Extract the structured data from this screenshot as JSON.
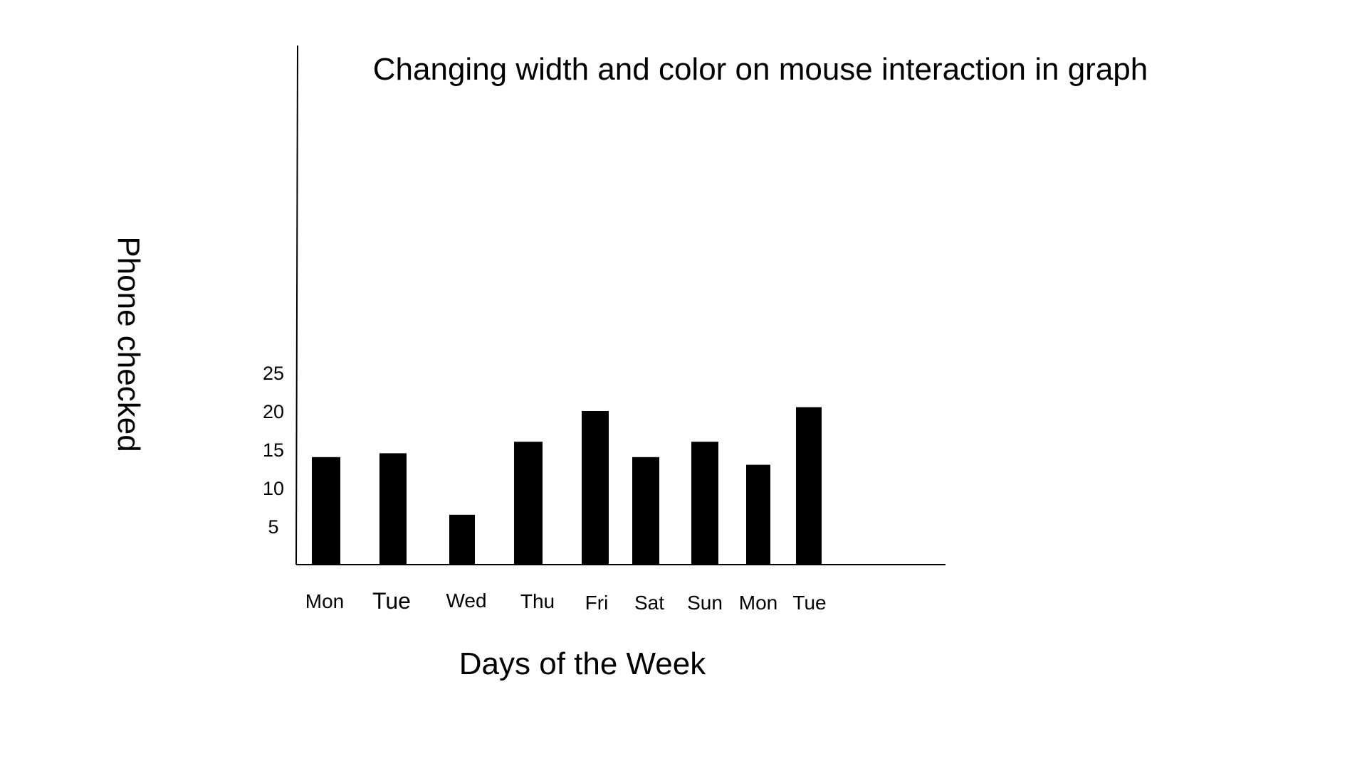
{
  "chart_data": {
    "type": "bar",
    "title": "Changing width and color on mouse interaction in graph",
    "xlabel": "Days of the Week",
    "ylabel": "Phone checked",
    "categories": [
      "Mon",
      "Tue",
      "Wed",
      "Thu",
      "Fri",
      "Sat",
      "Sun",
      "Mon",
      "Tue"
    ],
    "values": [
      14,
      14.5,
      6.5,
      16,
      20,
      14,
      16,
      13,
      20.5
    ],
    "yticks": [
      5,
      10,
      15,
      20,
      25
    ],
    "ylim": [
      0,
      50
    ],
    "grid": false,
    "legend": "none",
    "bar_color": "#000000"
  }
}
